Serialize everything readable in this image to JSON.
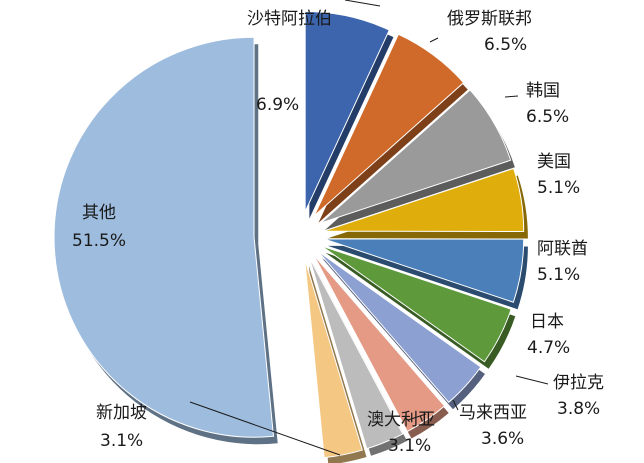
{
  "chart_data": {
    "type": "pie",
    "title": "",
    "unit": "%",
    "slices": [
      {
        "label": "沙特阿拉伯",
        "value": 6.9,
        "value_text": "6.9%",
        "color": "#3c65ad"
      },
      {
        "label": "俄罗斯联邦",
        "value": 6.5,
        "value_text": "6.5%",
        "color": "#d06a2a"
      },
      {
        "label": "韩国",
        "value": 6.5,
        "value_text": "6.5%",
        "color": "#9a9a9a"
      },
      {
        "label": "美国",
        "value": 5.1,
        "value_text": "5.1%",
        "color": "#e0ae0c"
      },
      {
        "label": "阿联酋",
        "value": 5.1,
        "value_text": "5.1%",
        "color": "#4a7fb9"
      },
      {
        "label": "日本",
        "value": 4.7,
        "value_text": "4.7%",
        "color": "#5e9a3c"
      },
      {
        "label": "伊拉克",
        "value": 3.8,
        "value_text": "3.8%",
        "color": "#8ca0d2"
      },
      {
        "label": "马来西亚",
        "value": 3.6,
        "value_text": "3.6%",
        "color": "#e49a85"
      },
      {
        "label": "澳大利亚",
        "value": 3.1,
        "value_text": "3.1%",
        "color": "#bcbcbc"
      },
      {
        "label": "新加坡",
        "value": 3.1,
        "value_text": "3.1%",
        "color": "#f4c883"
      },
      {
        "label": "其他",
        "value": 51.5,
        "value_text": "51.5%",
        "color": "#9dbcde"
      }
    ],
    "legend": "none"
  }
}
